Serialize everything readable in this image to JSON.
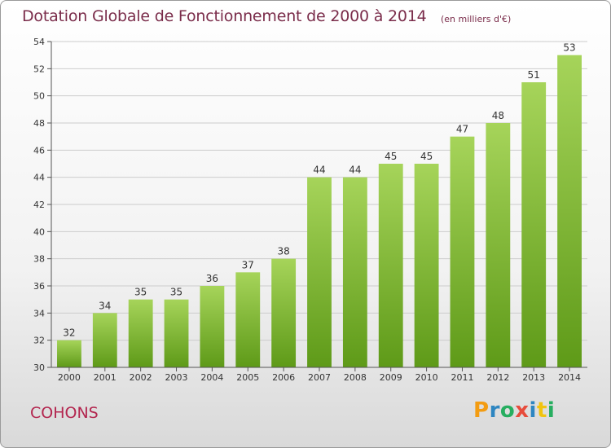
{
  "header": {
    "title": "Dotation Globale de Fonctionnement de 2000 à 2014",
    "unit": "(en milliers d'€)"
  },
  "footer": {
    "commune": "COHONS",
    "logo": {
      "letters": [
        "P",
        "r",
        "o",
        "x",
        "i",
        "t",
        "i"
      ],
      "colors": [
        "#f39c12",
        "#2e86c1",
        "#27ae60",
        "#e74c3c",
        "#2e86c1",
        "#f1c40f",
        "#27ae60"
      ]
    }
  },
  "colors": {
    "bar_top": "#a6d45a",
    "bar_bottom": "#5e9a18",
    "grid": "#cccccc",
    "axis": "#555555",
    "text": "#333333"
  },
  "chart_data": {
    "type": "bar",
    "categories": [
      "2000",
      "2001",
      "2002",
      "2003",
      "2004",
      "2005",
      "2006",
      "2007",
      "2008",
      "2009",
      "2010",
      "2011",
      "2012",
      "2013",
      "2014"
    ],
    "values": [
      32,
      34,
      35,
      35,
      36,
      37,
      38,
      44,
      44,
      45,
      45,
      47,
      48,
      51,
      53
    ],
    "ylim": [
      30,
      54
    ],
    "yticks": [
      30,
      32,
      34,
      36,
      38,
      40,
      42,
      44,
      46,
      48,
      50,
      52,
      54
    ],
    "grid": true,
    "title": "Dotation Globale de Fonctionnement de 2000 à 2014",
    "xlabel": "",
    "ylabel": ""
  }
}
